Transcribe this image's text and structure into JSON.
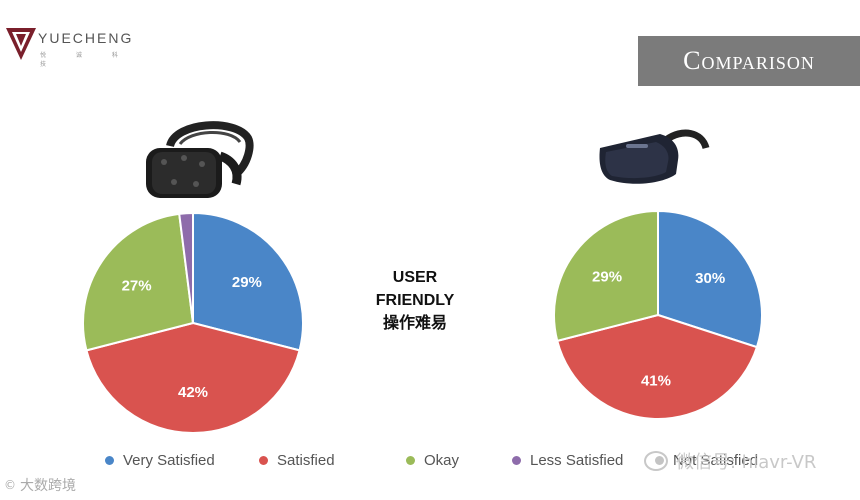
{
  "header": {
    "brand_name": "YUECHENG",
    "brand_sub": "悦 诚 科 技",
    "badge_text": "Comparison"
  },
  "center_label": {
    "line1": "USER",
    "line2": "FRIENDLY",
    "line3": "操作难易"
  },
  "watermarks": {
    "wechat": "微信号: hiavr-VR",
    "site": "大数跨境",
    "site_mark": "©"
  },
  "colors": {
    "very_satisfied": "#4a86c8",
    "satisfied": "#d9534f",
    "okay": "#9bbb59",
    "less_satisfied": "#8e6cab",
    "not_satisfied": "#6d6d6d"
  },
  "chart_data": [
    {
      "type": "pie",
      "title": "",
      "categories": [
        "Very Satisfied",
        "Satisfied",
        "Okay",
        "Less Satisfied"
      ],
      "values": [
        29,
        42,
        27,
        2
      ],
      "labels": [
        "29%",
        "42%",
        "27%",
        ""
      ]
    },
    {
      "type": "pie",
      "title": "",
      "categories": [
        "Very Satisfied",
        "Satisfied",
        "Okay"
      ],
      "values": [
        30,
        41,
        29
      ],
      "labels": [
        "30%",
        "41%",
        "29%"
      ]
    }
  ],
  "legend": [
    {
      "label": "Very Satisfied",
      "color": "#4a86c8"
    },
    {
      "label": "Satisfied",
      "color": "#d9534f"
    },
    {
      "label": "Okay",
      "color": "#9bbb59"
    },
    {
      "label": "Less Satisfied",
      "color": "#8e6cab"
    },
    {
      "label": "Not Satisfied",
      "color": "#6d6d6d"
    }
  ]
}
